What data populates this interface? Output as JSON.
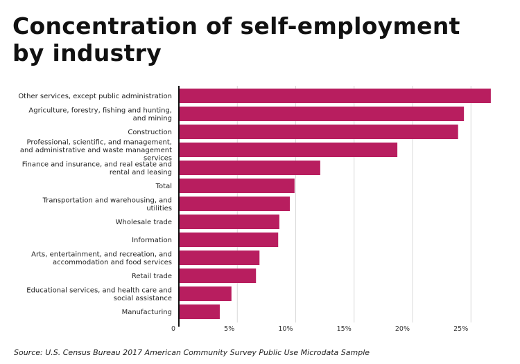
{
  "title": "Concentration of self-employment by industry",
  "source": "Source:  U.S. Census Bureau 2017 American Community Survey Public Use Microdata Sample",
  "colors": {
    "bar": "#b81e5f",
    "grid": "#d9d9d9",
    "axis": "#111111"
  },
  "chart_data": {
    "type": "bar",
    "orientation": "horizontal",
    "categories": [
      "Other services, except public administration",
      "Agriculture, forestry, fishing and hunting, and mining",
      "Construction",
      "Professional, scientific, and management, and administrative and waste management services",
      "Finance and insurance, and real estate and rental and leasing",
      "Total",
      "Transportation and warehousing, and utilities",
      "Wholesale trade",
      "Information",
      "Arts, entertainment, and recreation, and accommodation and food services",
      "Retail trade",
      "Educational services, and health care and social assistance",
      "Manufacturing"
    ],
    "values": [
      26.7,
      24.4,
      23.9,
      18.7,
      12.1,
      9.9,
      9.5,
      8.6,
      8.5,
      6.9,
      6.6,
      4.5,
      3.5
    ],
    "xlim": [
      0,
      27
    ],
    "xticks": [
      0,
      5,
      10,
      15,
      20,
      25
    ],
    "xtick_labels": [
      "0",
      "5%",
      "10%",
      "15%",
      "20%",
      "25%"
    ],
    "grid": true
  }
}
